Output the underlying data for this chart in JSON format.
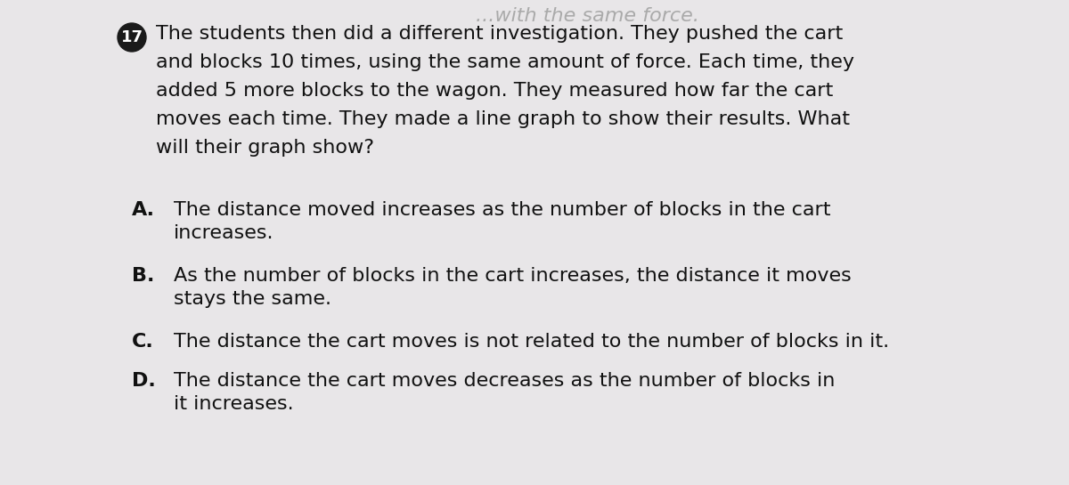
{
  "background_color": "#e8e6e8",
  "question_number": "17",
  "question_number_bg": "#1a1a1a",
  "top_partial_text": "... with the same force.",
  "question_text_line1": " The students then did a different investigation. They pushed the cart",
  "question_text_line2": "and blocks 10 times, using the same amount of force. Each time, they",
  "question_text_line3": "added 5 more blocks to the wagon. They measured how far the cart",
  "question_text_line4": "moves each time. They made a line graph to show their results. What",
  "question_text_line5": "will their graph show?",
  "options": [
    {
      "label": "A.",
      "text": "The distance moved increases as the number of blocks in the cart\nincreases."
    },
    {
      "label": "B.",
      "text": "As the number of blocks in the cart increases, the distance it moves\nstays the same."
    },
    {
      "label": "C.",
      "text": "The distance the cart moves is not related to the number of blocks in it."
    },
    {
      "label": "D.",
      "text": "The distance the cart moves decreases as the number of blocks in\nit increases."
    }
  ],
  "font_color": "#111111",
  "question_fontsize": 16,
  "option_fontsize": 16,
  "label_fontsize": 16,
  "top_text": "...with the same force."
}
